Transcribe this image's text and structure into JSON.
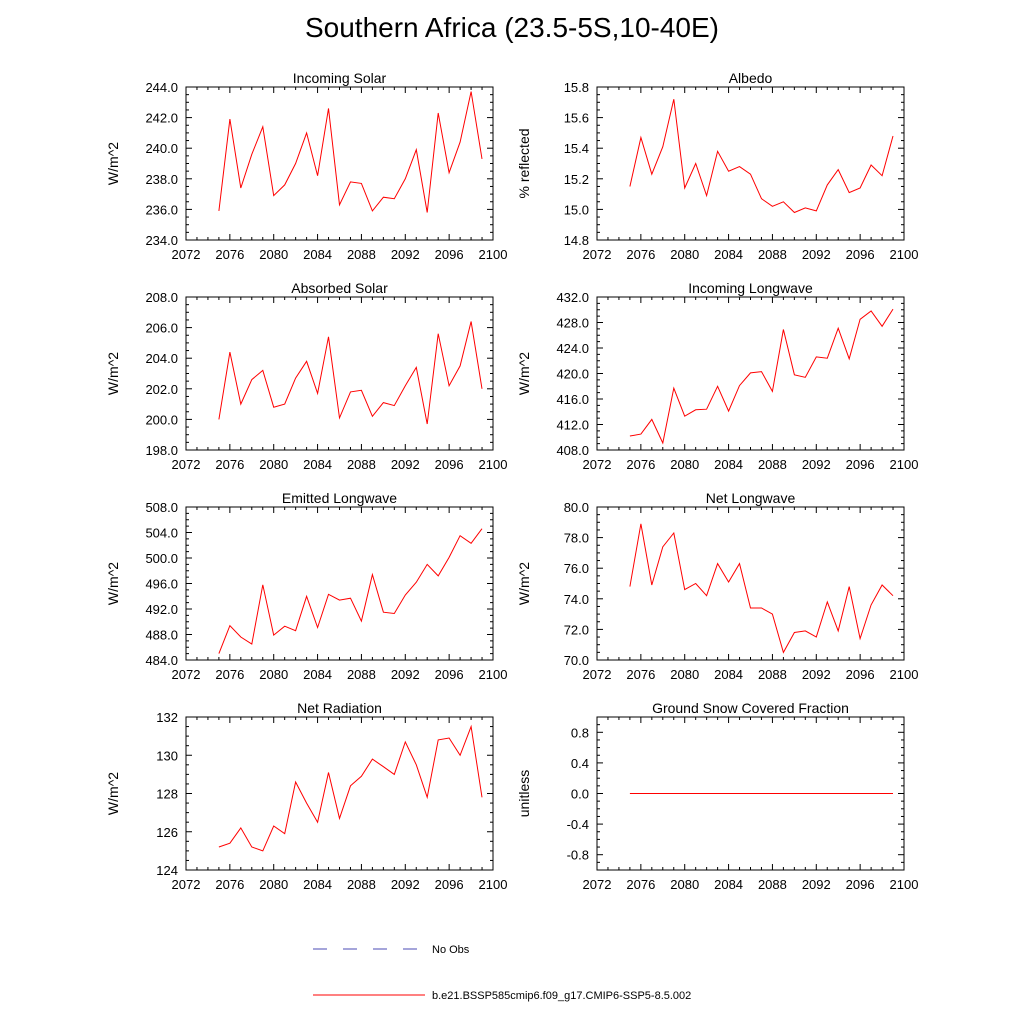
{
  "title": "Southern Africa (23.5-5S,10-40E)",
  "legend": [
    {
      "label": "No Obs",
      "color": "#4b4bb4",
      "style": "dashed"
    },
    {
      "label": "b.e21.BSSP585cmip6.f09_g17.CMIP6-SSP5-8.5.002",
      "color": "#ff0000",
      "style": "solid"
    }
  ],
  "chart_data": [
    {
      "type": "line",
      "title": "Incoming Solar",
      "ylabel": "W/m^2",
      "xlim": [
        2072,
        2100
      ],
      "xticks": [
        2072,
        2076,
        2080,
        2084,
        2088,
        2092,
        2096,
        2100
      ],
      "ylim": [
        234,
        244
      ],
      "yticks": [
        "234.0",
        "236.0",
        "238.0",
        "240.0",
        "242.0",
        "244.0"
      ],
      "x": [
        2075,
        2076,
        2077,
        2078,
        2079,
        2080,
        2081,
        2082,
        2083,
        2084,
        2085,
        2086,
        2087,
        2088,
        2089,
        2090,
        2091,
        2092,
        2093,
        2094,
        2095,
        2096,
        2097,
        2098,
        2099
      ],
      "series": [
        {
          "color": "#ff0000",
          "values": [
            235.9,
            241.9,
            237.4,
            239.6,
            241.4,
            236.9,
            237.6,
            239.0,
            241.0,
            238.2,
            242.6,
            236.3,
            237.8,
            237.7,
            235.9,
            236.8,
            236.7,
            238.0,
            239.9,
            235.8,
            242.3,
            238.4,
            240.4,
            243.7,
            239.3
          ]
        }
      ]
    },
    {
      "type": "line",
      "title": "Albedo",
      "ylabel": "% reflected",
      "xlim": [
        2072,
        2100
      ],
      "xticks": [
        2072,
        2076,
        2080,
        2084,
        2088,
        2092,
        2096,
        2100
      ],
      "ylim": [
        14.8,
        15.8
      ],
      "yticks": [
        "14.8",
        "15.0",
        "15.2",
        "15.4",
        "15.6",
        "15.8"
      ],
      "x": [
        2075,
        2076,
        2077,
        2078,
        2079,
        2080,
        2081,
        2082,
        2083,
        2084,
        2085,
        2086,
        2087,
        2088,
        2089,
        2090,
        2091,
        2092,
        2093,
        2094,
        2095,
        2096,
        2097,
        2098,
        2099
      ],
      "series": [
        {
          "color": "#ff0000",
          "values": [
            15.15,
            15.47,
            15.23,
            15.41,
            15.72,
            15.14,
            15.3,
            15.09,
            15.38,
            15.25,
            15.28,
            15.23,
            15.07,
            15.02,
            15.05,
            14.98,
            15.01,
            14.99,
            15.16,
            15.26,
            15.11,
            15.14,
            15.29,
            15.22,
            15.48
          ]
        }
      ]
    },
    {
      "type": "line",
      "title": "Absorbed Solar",
      "ylabel": "W/m^2",
      "xlim": [
        2072,
        2100
      ],
      "xticks": [
        2072,
        2076,
        2080,
        2084,
        2088,
        2092,
        2096,
        2100
      ],
      "ylim": [
        198,
        208
      ],
      "yticks": [
        "198.0",
        "200.0",
        "202.0",
        "204.0",
        "206.0",
        "208.0"
      ],
      "x": [
        2075,
        2076,
        2077,
        2078,
        2079,
        2080,
        2081,
        2082,
        2083,
        2084,
        2085,
        2086,
        2087,
        2088,
        2089,
        2090,
        2091,
        2092,
        2093,
        2094,
        2095,
        2096,
        2097,
        2098,
        2099
      ],
      "series": [
        {
          "color": "#ff0000",
          "values": [
            200.0,
            204.4,
            201.0,
            202.6,
            203.2,
            200.8,
            201.0,
            202.7,
            203.8,
            201.7,
            205.4,
            200.1,
            201.8,
            201.9,
            200.2,
            201.1,
            200.9,
            202.2,
            203.4,
            199.7,
            205.6,
            202.2,
            203.5,
            206.4,
            202.0
          ]
        }
      ]
    },
    {
      "type": "line",
      "title": "Incoming Longwave",
      "ylabel": "W/m^2",
      "xlim": [
        2072,
        2100
      ],
      "xticks": [
        2072,
        2076,
        2080,
        2084,
        2088,
        2092,
        2096,
        2100
      ],
      "ylim": [
        408,
        432
      ],
      "yticks": [
        "408.0",
        "412.0",
        "416.0",
        "420.0",
        "424.0",
        "428.0",
        "432.0"
      ],
      "x": [
        2075,
        2076,
        2077,
        2078,
        2079,
        2080,
        2081,
        2082,
        2083,
        2084,
        2085,
        2086,
        2087,
        2088,
        2089,
        2090,
        2091,
        2092,
        2093,
        2094,
        2095,
        2096,
        2097,
        2098,
        2099
      ],
      "series": [
        {
          "color": "#ff0000",
          "values": [
            410.2,
            410.5,
            412.8,
            409.1,
            417.7,
            413.3,
            414.3,
            414.4,
            418.0,
            414.1,
            418.1,
            420.1,
            420.3,
            417.2,
            426.9,
            419.8,
            419.4,
            422.6,
            422.4,
            427.1,
            422.3,
            428.5,
            429.8,
            427.4,
            430.1
          ]
        }
      ]
    },
    {
      "type": "line",
      "title": "Emitted Longwave",
      "ylabel": "W/m^2",
      "xlim": [
        2072,
        2100
      ],
      "xticks": [
        2072,
        2076,
        2080,
        2084,
        2088,
        2092,
        2096,
        2100
      ],
      "ylim": [
        484,
        508
      ],
      "yticks": [
        "484.0",
        "488.0",
        "492.0",
        "496.0",
        "500.0",
        "504.0",
        "508.0"
      ],
      "x": [
        2075,
        2076,
        2077,
        2078,
        2079,
        2080,
        2081,
        2082,
        2083,
        2084,
        2085,
        2086,
        2087,
        2088,
        2089,
        2090,
        2091,
        2092,
        2093,
        2094,
        2095,
        2096,
        2097,
        2098,
        2099
      ],
      "series": [
        {
          "color": "#ff0000",
          "values": [
            485.0,
            489.4,
            487.6,
            486.5,
            495.8,
            487.9,
            489.3,
            488.6,
            494.0,
            489.1,
            494.3,
            493.4,
            493.7,
            490.1,
            497.4,
            491.5,
            491.3,
            494.2,
            496.2,
            499.0,
            497.2,
            500.1,
            503.5,
            502.3,
            504.6
          ]
        }
      ]
    },
    {
      "type": "line",
      "title": "Net Longwave",
      "ylabel": "W/m^2",
      "xlim": [
        2072,
        2100
      ],
      "xticks": [
        2072,
        2076,
        2080,
        2084,
        2088,
        2092,
        2096,
        2100
      ],
      "ylim": [
        70,
        80
      ],
      "yticks": [
        "70.0",
        "72.0",
        "74.0",
        "76.0",
        "78.0",
        "80.0"
      ],
      "x": [
        2075,
        2076,
        2077,
        2078,
        2079,
        2080,
        2081,
        2082,
        2083,
        2084,
        2085,
        2086,
        2087,
        2088,
        2089,
        2090,
        2091,
        2092,
        2093,
        2094,
        2095,
        2096,
        2097,
        2098,
        2099
      ],
      "series": [
        {
          "color": "#ff0000",
          "values": [
            74.8,
            78.9,
            74.9,
            77.4,
            78.3,
            74.6,
            75.0,
            74.2,
            76.3,
            75.1,
            76.3,
            73.4,
            73.4,
            73.0,
            70.5,
            71.8,
            71.9,
            71.5,
            73.8,
            71.9,
            74.8,
            71.4,
            73.6,
            74.9,
            74.2
          ]
        }
      ]
    },
    {
      "type": "line",
      "title": "Net Radiation",
      "ylabel": "W/m^2",
      "xlim": [
        2072,
        2100
      ],
      "xticks": [
        2072,
        2076,
        2080,
        2084,
        2088,
        2092,
        2096,
        2100
      ],
      "ylim": [
        124,
        132
      ],
      "yticks": [
        "124",
        "126",
        "128",
        "130",
        "132"
      ],
      "x": [
        2075,
        2076,
        2077,
        2078,
        2079,
        2080,
        2081,
        2082,
        2083,
        2084,
        2085,
        2086,
        2087,
        2088,
        2089,
        2090,
        2091,
        2092,
        2093,
        2094,
        2095,
        2096,
        2097,
        2098,
        2099
      ],
      "series": [
        {
          "color": "#ff0000",
          "values": [
            125.2,
            125.4,
            126.2,
            125.2,
            125.0,
            126.3,
            125.9,
            128.6,
            127.5,
            126.5,
            129.1,
            126.7,
            128.4,
            128.9,
            129.8,
            129.4,
            129.0,
            130.7,
            129.5,
            127.8,
            130.8,
            130.9,
            130.0,
            131.5,
            127.8
          ]
        }
      ]
    },
    {
      "type": "line",
      "title": "Ground Snow Covered Fraction",
      "ylabel": "unitless",
      "xlim": [
        2072,
        2100
      ],
      "xticks": [
        2072,
        2076,
        2080,
        2084,
        2088,
        2092,
        2096,
        2100
      ],
      "ylim": [
        -1.0,
        1.0
      ],
      "yticks": [
        "-0.8",
        "-0.4",
        "0.0",
        "0.4",
        "0.8"
      ],
      "ytick_values": [
        -0.8,
        -0.4,
        0.0,
        0.4,
        0.8
      ],
      "x": [
        2075,
        2076,
        2077,
        2078,
        2079,
        2080,
        2081,
        2082,
        2083,
        2084,
        2085,
        2086,
        2087,
        2088,
        2089,
        2090,
        2091,
        2092,
        2093,
        2094,
        2095,
        2096,
        2097,
        2098,
        2099
      ],
      "series": [
        {
          "color": "#ff0000",
          "values": [
            0,
            0,
            0,
            0,
            0,
            0,
            0,
            0,
            0,
            0,
            0,
            0,
            0,
            0,
            0,
            0,
            0,
            0,
            0,
            0,
            0,
            0,
            0,
            0,
            0
          ]
        }
      ]
    }
  ]
}
